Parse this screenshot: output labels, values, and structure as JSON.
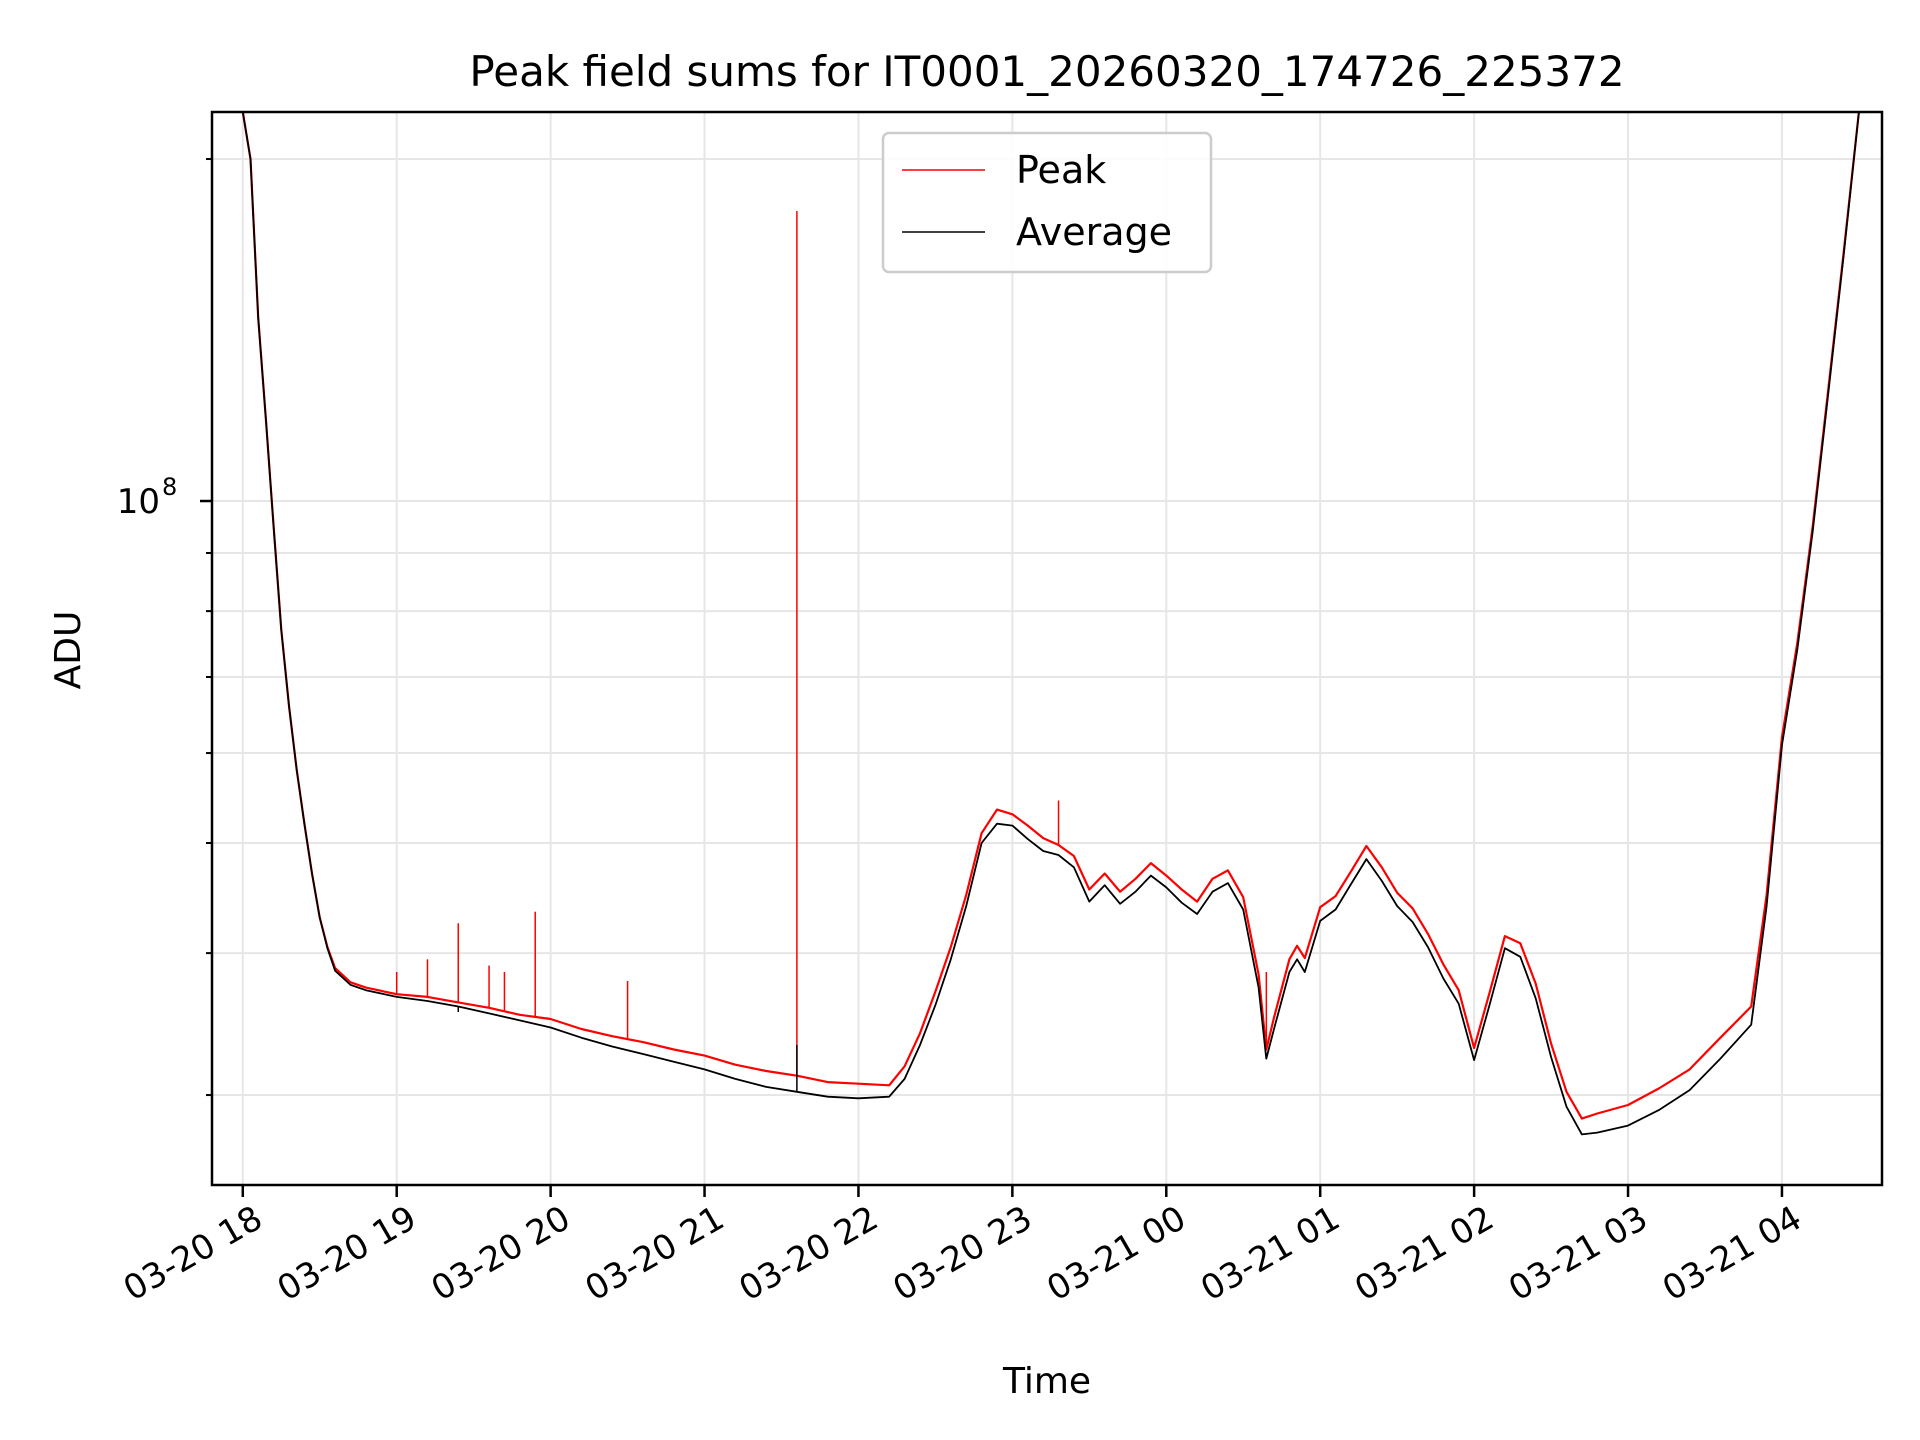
{
  "chart_data": {
    "type": "line",
    "title": "Peak field sums for IT0001_20260320_174726_225372",
    "xlabel": "Time",
    "ylabel": "ADU",
    "yscale": "log",
    "ylim": [
      25000000,
      220000000
    ],
    "xlim": [
      17.8,
      28.65
    ],
    "grid": true,
    "legend_position": "upper center",
    "x_tick_values": [
      18,
      19,
      20,
      21,
      22,
      23,
      24,
      25,
      26,
      27,
      28
    ],
    "x_tick_labels": [
      "03-20 18",
      "03-20 19",
      "03-20 20",
      "03-20 21",
      "03-20 22",
      "03-20 23",
      "03-21 00",
      "03-21 01",
      "03-21 02",
      "03-21 03",
      "03-21 04"
    ],
    "y_major_ticks": [
      {
        "value": 100000000,
        "base": "10",
        "exponent": "8"
      }
    ],
    "y_minor_ticks": [
      30000000,
      40000000,
      50000000,
      60000000,
      70000000,
      80000000,
      90000000,
      200000000
    ],
    "x_unit": "hours since 2026-03-20 00:00 (decimal)",
    "series": [
      {
        "name": "Peak",
        "color": "#ff0000",
        "points": [
          [
            18.0,
            220000000
          ],
          [
            18.05,
            200000000
          ],
          [
            18.1,
            145000000
          ],
          [
            18.15,
            118000000
          ],
          [
            18.2,
            95000000
          ],
          [
            18.25,
            77000000
          ],
          [
            18.3,
            66000000
          ],
          [
            18.35,
            58000000
          ],
          [
            18.4,
            52000000
          ],
          [
            18.45,
            47000000
          ],
          [
            18.5,
            43000000
          ],
          [
            18.55,
            40500000
          ],
          [
            18.6,
            38800000
          ],
          [
            18.7,
            37700000
          ],
          [
            18.8,
            37300000
          ],
          [
            19.0,
            36800000
          ],
          [
            19.2,
            36600000
          ],
          [
            19.4,
            36200000
          ],
          [
            19.6,
            35800000
          ],
          [
            19.8,
            35300000
          ],
          [
            20.0,
            35000000
          ],
          [
            20.2,
            34300000
          ],
          [
            20.4,
            33800000
          ],
          [
            20.6,
            33400000
          ],
          [
            20.8,
            32900000
          ],
          [
            21.0,
            32500000
          ],
          [
            21.2,
            31900000
          ],
          [
            21.4,
            31500000
          ],
          [
            21.6,
            31200000
          ],
          [
            21.8,
            30800000
          ],
          [
            22.0,
            30700000
          ],
          [
            22.2,
            30600000
          ],
          [
            22.3,
            31800000
          ],
          [
            22.4,
            34000000
          ],
          [
            22.5,
            37000000
          ],
          [
            22.6,
            40500000
          ],
          [
            22.7,
            45000000
          ],
          [
            22.8,
            51000000
          ],
          [
            22.9,
            53500000
          ],
          [
            23.0,
            53000000
          ],
          [
            23.1,
            51800000
          ],
          [
            23.2,
            50500000
          ],
          [
            23.3,
            49800000
          ],
          [
            23.4,
            48700000
          ],
          [
            23.5,
            45500000
          ],
          [
            23.6,
            47000000
          ],
          [
            23.7,
            45300000
          ],
          [
            23.8,
            46500000
          ],
          [
            23.9,
            48000000
          ],
          [
            24.0,
            46800000
          ],
          [
            24.1,
            45500000
          ],
          [
            24.2,
            44400000
          ],
          [
            24.3,
            46500000
          ],
          [
            24.4,
            47300000
          ],
          [
            24.5,
            44800000
          ],
          [
            24.6,
            38300000
          ],
          [
            24.65,
            32900000
          ],
          [
            24.7,
            35100000
          ],
          [
            24.8,
            39500000
          ],
          [
            24.85,
            40600000
          ],
          [
            24.9,
            39600000
          ],
          [
            25.0,
            43900000
          ],
          [
            25.1,
            44900000
          ],
          [
            25.2,
            47200000
          ],
          [
            25.3,
            49700000
          ],
          [
            25.4,
            47600000
          ],
          [
            25.5,
            45200000
          ],
          [
            25.6,
            43800000
          ],
          [
            25.7,
            41600000
          ],
          [
            25.8,
            39100000
          ],
          [
            25.9,
            37100000
          ],
          [
            26.0,
            33000000
          ],
          [
            26.1,
            36900000
          ],
          [
            26.2,
            41400000
          ],
          [
            26.3,
            40800000
          ],
          [
            26.4,
            37600000
          ],
          [
            26.5,
            33300000
          ],
          [
            26.6,
            30200000
          ],
          [
            26.7,
            28600000
          ],
          [
            26.8,
            28900000
          ],
          [
            27.0,
            29400000
          ],
          [
            27.2,
            30400000
          ],
          [
            27.4,
            31600000
          ],
          [
            27.6,
            33700000
          ],
          [
            27.8,
            35900000
          ],
          [
            27.9,
            45000000
          ],
          [
            28.0,
            62000000
          ],
          [
            28.1,
            75000000
          ],
          [
            28.2,
            95000000
          ],
          [
            28.3,
            125000000
          ],
          [
            28.4,
            165000000
          ],
          [
            28.5,
            220000000
          ]
        ],
        "spikes": [
          [
            19.0,
            38500000
          ],
          [
            19.2,
            39500000
          ],
          [
            19.4,
            42500000
          ],
          [
            19.6,
            39000000
          ],
          [
            19.7,
            38500000
          ],
          [
            19.9,
            43500000
          ],
          [
            20.5,
            37800000
          ],
          [
            21.6,
            180000000
          ],
          [
            23.3,
            54500000
          ],
          [
            24.65,
            38500000
          ]
        ]
      },
      {
        "name": "Average",
        "color": "#000000",
        "points": [
          [
            18.0,
            220000000
          ],
          [
            18.05,
            200000000
          ],
          [
            18.1,
            145000000
          ],
          [
            18.15,
            118000000
          ],
          [
            18.2,
            95000000
          ],
          [
            18.25,
            77000000
          ],
          [
            18.3,
            66000000
          ],
          [
            18.35,
            58000000
          ],
          [
            18.4,
            52000000
          ],
          [
            18.45,
            47000000
          ],
          [
            18.5,
            43000000
          ],
          [
            18.55,
            40400000
          ],
          [
            18.6,
            38600000
          ],
          [
            18.7,
            37500000
          ],
          [
            18.8,
            37100000
          ],
          [
            19.0,
            36600000
          ],
          [
            19.2,
            36300000
          ],
          [
            19.4,
            35900000
          ],
          [
            19.6,
            35400000
          ],
          [
            19.8,
            34900000
          ],
          [
            20.0,
            34400000
          ],
          [
            20.2,
            33700000
          ],
          [
            20.4,
            33100000
          ],
          [
            20.6,
            32600000
          ],
          [
            20.8,
            32100000
          ],
          [
            21.0,
            31600000
          ],
          [
            21.2,
            31000000
          ],
          [
            21.4,
            30500000
          ],
          [
            21.6,
            30200000
          ],
          [
            21.8,
            29900000
          ],
          [
            22.0,
            29800000
          ],
          [
            22.2,
            29900000
          ],
          [
            22.3,
            31000000
          ],
          [
            22.4,
            33200000
          ],
          [
            22.5,
            36000000
          ],
          [
            22.6,
            39500000
          ],
          [
            22.7,
            44000000
          ],
          [
            22.8,
            50000000
          ],
          [
            22.9,
            52000000
          ],
          [
            23.0,
            51800000
          ],
          [
            23.1,
            50400000
          ],
          [
            23.2,
            49200000
          ],
          [
            23.3,
            48800000
          ],
          [
            23.4,
            47600000
          ],
          [
            23.5,
            44400000
          ],
          [
            23.6,
            45900000
          ],
          [
            23.7,
            44200000
          ],
          [
            23.8,
            45300000
          ],
          [
            23.9,
            46800000
          ],
          [
            24.0,
            45700000
          ],
          [
            24.1,
            44300000
          ],
          [
            24.2,
            43300000
          ],
          [
            24.3,
            45300000
          ],
          [
            24.4,
            46100000
          ],
          [
            24.5,
            43700000
          ],
          [
            24.6,
            37300000
          ],
          [
            24.65,
            32300000
          ],
          [
            24.7,
            34300000
          ],
          [
            24.8,
            38500000
          ],
          [
            24.85,
            39500000
          ],
          [
            24.9,
            38500000
          ],
          [
            25.0,
            42700000
          ],
          [
            25.1,
            43700000
          ],
          [
            25.2,
            46000000
          ],
          [
            25.3,
            48400000
          ],
          [
            25.4,
            46300000
          ],
          [
            25.5,
            44000000
          ],
          [
            25.6,
            42600000
          ],
          [
            25.7,
            40500000
          ],
          [
            25.8,
            38000000
          ],
          [
            25.9,
            36100000
          ],
          [
            26.0,
            32200000
          ],
          [
            26.1,
            36000000
          ],
          [
            26.2,
            40400000
          ],
          [
            26.3,
            39700000
          ],
          [
            26.4,
            36500000
          ],
          [
            26.5,
            32400000
          ],
          [
            26.6,
            29300000
          ],
          [
            26.7,
            27700000
          ],
          [
            26.8,
            27800000
          ],
          [
            27.0,
            28200000
          ],
          [
            27.2,
            29100000
          ],
          [
            27.4,
            30300000
          ],
          [
            27.6,
            32300000
          ],
          [
            27.8,
            34600000
          ],
          [
            27.9,
            44000000
          ],
          [
            28.0,
            61000000
          ],
          [
            28.1,
            74000000
          ],
          [
            28.2,
            94000000
          ],
          [
            28.3,
            124000000
          ],
          [
            28.4,
            164000000
          ],
          [
            28.5,
            220000000
          ]
        ],
        "spikes": [
          [
            19.4,
            35500000
          ],
          [
            21.6,
            33200000
          ]
        ]
      }
    ]
  }
}
